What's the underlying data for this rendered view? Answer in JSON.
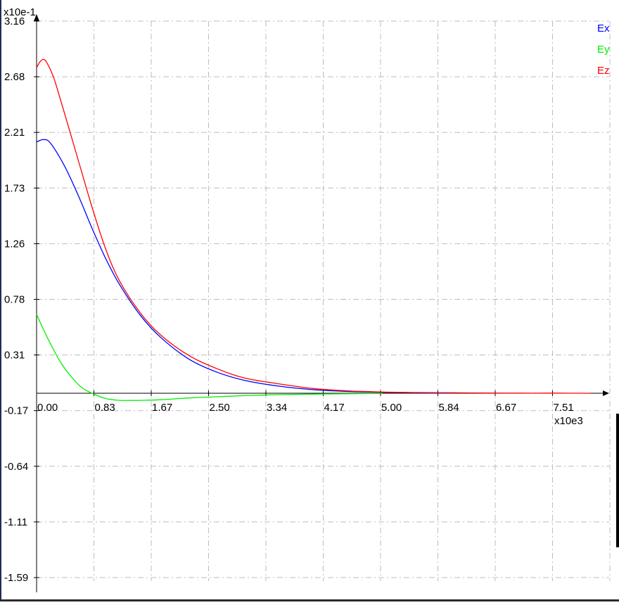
{
  "chart_data": {
    "type": "line",
    "x_scale_label": "x10e3",
    "y_scale_label": "x10e-1",
    "x_ticks": [
      "0.00",
      "0.83",
      "1.67",
      "2.50",
      "3.34",
      "4.17",
      "5.00",
      "5.84",
      "6.67",
      "7.51"
    ],
    "y_ticks": [
      "3.16",
      "2.68",
      "2.21",
      "1.73",
      "1.26",
      "0.78",
      "0.31",
      "-0.17",
      "-0.64",
      "-1.11",
      "-1.59"
    ],
    "xlim": [
      0,
      8.5
    ],
    "ylim": [
      -1.59,
      3.16
    ],
    "grid": true,
    "legend_position": "top-right",
    "series": [
      {
        "name": "Ex",
        "color": "#0000ff",
        "x": [
          0,
          0.1,
          0.2,
          0.4,
          0.6,
          0.8,
          1.0,
          1.2,
          1.5,
          1.8,
          2.2,
          2.6,
          3.0,
          3.5,
          4.0,
          4.5,
          5.0,
          5.5,
          6.0
        ],
        "y": [
          2.13,
          2.15,
          2.12,
          1.93,
          1.68,
          1.4,
          1.14,
          0.92,
          0.66,
          0.47,
          0.29,
          0.18,
          0.11,
          0.06,
          0.03,
          0.015,
          0.008,
          0.004,
          0.002
        ]
      },
      {
        "name": "Ey",
        "color": "#00ee00",
        "x": [
          0,
          0.1,
          0.2,
          0.35,
          0.5,
          0.65,
          0.8,
          1.0,
          1.2,
          1.5,
          1.8,
          2.2,
          2.6,
          3.0,
          3.5,
          4.0,
          4.5,
          5.0
        ],
        "y": [
          0.67,
          0.54,
          0.42,
          0.26,
          0.14,
          0.05,
          0.0,
          -0.045,
          -0.06,
          -0.06,
          -0.055,
          -0.04,
          -0.03,
          -0.02,
          -0.012,
          -0.007,
          -0.004,
          -0.002
        ]
      },
      {
        "name": "Ez",
        "color": "#ff0000",
        "x": [
          0,
          0.05,
          0.1,
          0.15,
          0.25,
          0.4,
          0.6,
          0.8,
          1.0,
          1.2,
          1.5,
          1.8,
          2.2,
          2.6,
          3.0,
          3.5,
          4.0,
          4.5,
          5.0,
          5.5,
          6.0,
          6.5,
          7.0,
          7.5,
          8.0
        ],
        "y": [
          2.76,
          2.81,
          2.83,
          2.8,
          2.67,
          2.38,
          1.98,
          1.58,
          1.22,
          0.95,
          0.68,
          0.49,
          0.32,
          0.21,
          0.13,
          0.08,
          0.04,
          0.02,
          0.01,
          0.006,
          0.004,
          0.002,
          0.001,
          0.001,
          0.0
        ]
      }
    ]
  }
}
